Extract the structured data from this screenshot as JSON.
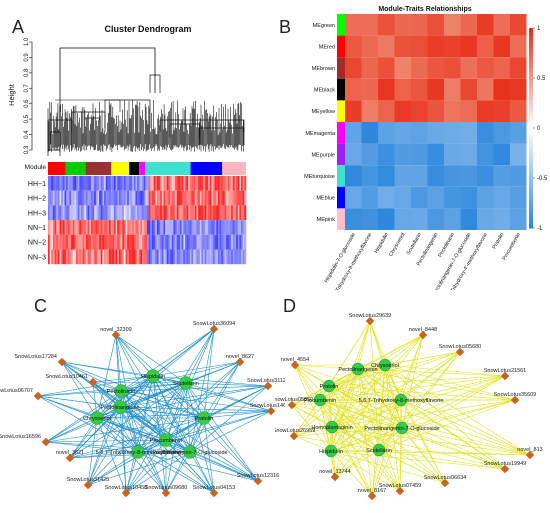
{
  "panelA": {
    "letter": "A",
    "title": "Cluster Dendrogram",
    "ylabel": "Height",
    "yticks": [
      "1.0",
      "0.9",
      "0.8",
      "0.7",
      "0.6",
      "0.5",
      "0.4",
      "0.3"
    ],
    "module_label": "Module",
    "rows": [
      "HH−1",
      "HH−2",
      "HH−3",
      "NN−1",
      "NN−2",
      "NN−3"
    ],
    "module_colors": [
      {
        "color": "#ff0000",
        "w": 0.09
      },
      {
        "color": "#00cc00",
        "w": 0.1
      },
      {
        "color": "#993333",
        "w": 0.13
      },
      {
        "color": "#ffff00",
        "w": 0.09
      },
      {
        "color": "#000000",
        "w": 0.05
      },
      {
        "color": "#ff00ff",
        "w": 0.03
      },
      {
        "color": "#40e0d0",
        "w": 0.23
      },
      {
        "color": "#0000ff",
        "w": 0.16
      },
      {
        "color": "#ffb6c1",
        "w": 0.12
      }
    ]
  },
  "panelB": {
    "letter": "B",
    "title": "Module-Traits Relationships",
    "modules": [
      {
        "name": "MEgreen",
        "color": "#00ff00"
      },
      {
        "name": "MEred",
        "color": "#ff0000"
      },
      {
        "name": "MEbrown",
        "color": "#a52a2a"
      },
      {
        "name": "MEblack",
        "color": "#000000"
      },
      {
        "name": "MEyellow",
        "color": "#ffff00"
      },
      {
        "name": "MEmagenta",
        "color": "#ff00ff"
      },
      {
        "name": "MEpurple",
        "color": "#a020f0"
      },
      {
        "name": "MEturquoise",
        "color": "#40e0d0"
      },
      {
        "name": "MEblue",
        "color": "#0000ff"
      },
      {
        "name": "MEpink",
        "color": "#ffc0cb"
      }
    ],
    "traits": [
      "Hispidulin-7-O-glucoside",
      "5,6,7-Trihydroxy-8-methoxyflavone",
      "Hispidulin",
      "Chrysoeriol",
      "Scutellarin",
      "Pectolinarigenin",
      "Pectolinarin",
      "Pectolinarigenin-7-O-glucoside",
      "5,6,7-Trihydroxy-4'-methoxyflavone",
      "Pratolin",
      "Procumbenin"
    ],
    "scale_ticks": [
      "1",
      "0.5",
      "0",
      "-0.5",
      "-1"
    ],
    "colors": {
      "pos": "#e8321e",
      "neg": "#2d87dc"
    }
  },
  "panelC": {
    "letter": "C",
    "edge_color": "#1e8fd0",
    "hubs": [
      "Hispidulin",
      "Scutellarin",
      "Pectolinarin",
      "Chrysoeriol",
      "Pectolinarigenin",
      "Pratolin",
      "Procumbenin",
      "5,6,7-Trihydroxy-8-methoxyflavone",
      "Pectolinarigenin-7-O-glucoside"
    ],
    "genes": [
      "novel_32309",
      "SnowLotus36094",
      "SnowLotus17284",
      "novel_8627",
      "SnowLotus31129",
      "SnowLotus14648",
      "SnowLotus12316",
      "SnowLotus04153",
      "SnowLotus09680",
      "SnowLotus10458",
      "SnowLotus31425",
      "novel_3621",
      "SnowLotus16596",
      "SnowLotus06707",
      "SnowLotus10461"
    ]
  },
  "panelD": {
    "letter": "D",
    "edge_color": "#e2e21c",
    "hubs": [
      "Pectolinarigenin",
      "Chrysoeriol",
      "Pratolin",
      "Procumbenin",
      "5,6,7-Trihydroxy-8-methoxyflavone",
      "Homoplantaginin",
      "Pectolinarigenin-7-O-glucoside",
      "Hispidulin",
      "Scutellarin"
    ],
    "genes": [
      "SnowLotus29639",
      "novel_8448",
      "SnowLotus05680",
      "novel_4554",
      "SnowLotus21561",
      "SnowLotus35609",
      "SnowLotus05550",
      "novel_813",
      "SnowLotus19949",
      "SnowLotus06634",
      "SnowLotus07459",
      "novel_8167",
      "novel_13744",
      "SnowLotus26959"
    ]
  }
}
